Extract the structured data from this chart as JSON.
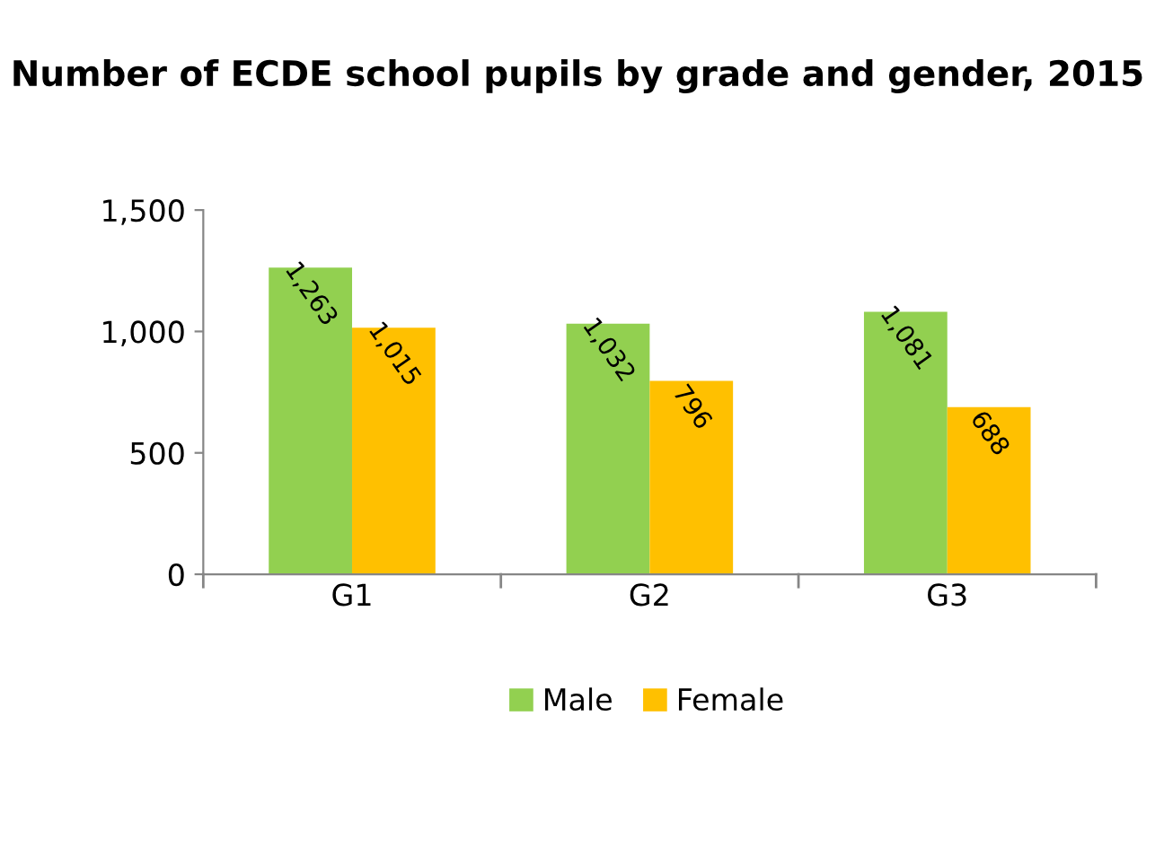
{
  "chart_data": {
    "type": "bar",
    "title": "Number of ECDE school pupils by grade and gender, 2015",
    "categories": [
      "G1",
      "G2",
      "G3"
    ],
    "series": [
      {
        "name": "Male",
        "color": "#92d050",
        "values": [
          1263,
          1032,
          1081
        ],
        "value_labels": [
          "1,263",
          "1,032",
          "1,081"
        ]
      },
      {
        "name": "Female",
        "color": "#ffc000",
        "values": [
          1015,
          796,
          688
        ],
        "value_labels": [
          "1,015",
          "796",
          "688"
        ]
      }
    ],
    "ylim": [
      0,
      1500
    ],
    "yticks": [
      0,
      {
        "value": 500,
        "label": "500"
      },
      {
        "value": 1000,
        "label": "1,000"
      },
      {
        "value": 1500,
        "label": "1,500"
      }
    ],
    "grid": false,
    "legend": "bottom"
  }
}
